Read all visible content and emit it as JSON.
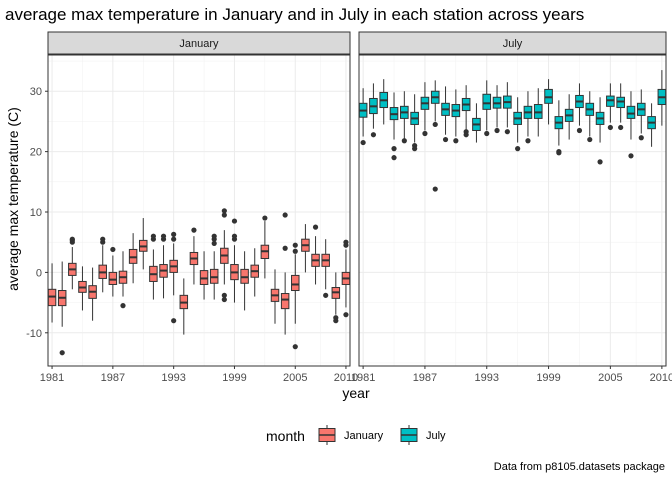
{
  "chart_data": {
    "type": "boxplot",
    "title": "average max temperature in January and in July in each station across years",
    "xlabel": "year",
    "ylabel": "average max temperature (C)",
    "caption": "Data from p8105.datasets package",
    "legend": {
      "title": "month",
      "position": "bottom",
      "entries": [
        "January",
        "July"
      ]
    },
    "colors": {
      "January": "#F8766D",
      "July": "#00BFC4"
    },
    "xlim": [
      1980.6,
      2010.4
    ],
    "ylim": [
      -15.5,
      36
    ],
    "x_ticks": [
      1981,
      1987,
      1993,
      1999,
      2005,
      2010
    ],
    "y_ticks": [
      -10,
      0,
      10,
      20,
      30
    ],
    "grid": true,
    "facets": [
      {
        "label": "January",
        "series": "January",
        "boxes": [
          {
            "year": 1981,
            "q1": -5.5,
            "median": -4.0,
            "q3": -2.8,
            "whisker_low": -8.3,
            "whisker_high": 1.5,
            "outliers": []
          },
          {
            "year": 1982,
            "q1": -5.5,
            "median": -4.2,
            "q3": -3.0,
            "whisker_low": -9.0,
            "whisker_high": 1.8,
            "outliers": [
              -13.3
            ]
          },
          {
            "year": 1983,
            "q1": -0.5,
            "median": 0.5,
            "q3": 1.5,
            "whisker_low": -2.8,
            "whisker_high": 4.2,
            "outliers": [
              5.0,
              5.3,
              5.5
            ]
          },
          {
            "year": 1984,
            "q1": -3.3,
            "median": -2.5,
            "q3": -1.5,
            "whisker_low": -6.3,
            "whisker_high": 1.0,
            "outliers": []
          },
          {
            "year": 1985,
            "q1": -4.3,
            "median": -3.2,
            "q3": -2.2,
            "whisker_low": -8.0,
            "whisker_high": 0.8,
            "outliers": []
          },
          {
            "year": 1986,
            "q1": -1.0,
            "median": 0.0,
            "q3": 1.2,
            "whisker_low": -3.3,
            "whisker_high": 4.5,
            "outliers": [
              5.0,
              5.5
            ]
          },
          {
            "year": 1987,
            "q1": -2.0,
            "median": -1.2,
            "q3": 0.0,
            "whisker_low": -4.0,
            "whisker_high": 2.8,
            "outliers": [
              3.8
            ]
          },
          {
            "year": 1988,
            "q1": -1.8,
            "median": -0.8,
            "q3": 0.2,
            "whisker_low": -4.0,
            "whisker_high": 3.5,
            "outliers": [
              -5.5
            ]
          },
          {
            "year": 1989,
            "q1": 1.5,
            "median": 2.5,
            "q3": 3.8,
            "whisker_low": -1.8,
            "whisker_high": 6.5,
            "outliers": []
          },
          {
            "year": 1990,
            "q1": 3.5,
            "median": 4.3,
            "q3": 5.3,
            "whisker_low": 0.5,
            "whisker_high": 9.0,
            "outliers": []
          },
          {
            "year": 1991,
            "q1": -1.5,
            "median": -0.3,
            "q3": 1.0,
            "whisker_low": -4.5,
            "whisker_high": 3.8,
            "outliers": [
              5.5,
              6.0
            ]
          },
          {
            "year": 1992,
            "q1": -0.8,
            "median": 0.3,
            "q3": 1.3,
            "whisker_low": -4.3,
            "whisker_high": 4.5,
            "outliers": [
              5.5,
              6.0
            ]
          },
          {
            "year": 1993,
            "q1": 0.0,
            "median": 1.0,
            "q3": 2.0,
            "whisker_low": -3.8,
            "whisker_high": 4.8,
            "outliers": [
              5.5,
              6.3,
              -8.0
            ]
          },
          {
            "year": 1994,
            "q1": -6.0,
            "median": -5.0,
            "q3": -3.8,
            "whisker_low": -10.3,
            "whisker_high": -1.0,
            "outliers": []
          },
          {
            "year": 1995,
            "q1": 1.3,
            "median": 2.3,
            "q3": 3.3,
            "whisker_low": -2.0,
            "whisker_high": 6.0,
            "outliers": [
              7.0
            ]
          },
          {
            "year": 1996,
            "q1": -2.0,
            "median": -1.0,
            "q3": 0.3,
            "whisker_low": -4.5,
            "whisker_high": 3.5,
            "outliers": []
          },
          {
            "year": 1997,
            "q1": -1.8,
            "median": -0.8,
            "q3": 0.5,
            "whisker_low": -4.5,
            "whisker_high": 3.5,
            "outliers": [
              4.8,
              5.5,
              6.0
            ]
          },
          {
            "year": 1998,
            "q1": 1.5,
            "median": 2.8,
            "q3": 4.0,
            "whisker_low": -2.0,
            "whisker_high": 7.0,
            "outliers": [
              10.2,
              9.5,
              -3.8,
              -4.5
            ]
          },
          {
            "year": 1999,
            "q1": -1.2,
            "median": 0.0,
            "q3": 1.3,
            "whisker_low": -5.0,
            "whisker_high": 4.5,
            "outliers": [
              5.5,
              6.0,
              8.5
            ]
          },
          {
            "year": 2000,
            "q1": -1.8,
            "median": -0.8,
            "q3": 0.5,
            "whisker_low": -6.3,
            "whisker_high": 3.5,
            "outliers": []
          },
          {
            "year": 2001,
            "q1": -0.8,
            "median": 0.2,
            "q3": 1.2,
            "whisker_low": -4.0,
            "whisker_high": 4.0,
            "outliers": []
          },
          {
            "year": 2002,
            "q1": 2.3,
            "median": 3.5,
            "q3": 4.5,
            "whisker_low": -1.0,
            "whisker_high": 8.5,
            "outliers": [
              9.0
            ]
          },
          {
            "year": 2003,
            "q1": -4.8,
            "median": -3.8,
            "q3": -2.8,
            "whisker_low": -8.5,
            "whisker_high": 0.5,
            "outliers": []
          },
          {
            "year": 2004,
            "q1": -6.0,
            "median": -4.5,
            "q3": -3.5,
            "whisker_low": -10.3,
            "whisker_high": 0.0,
            "outliers": [
              9.5,
              4.0
            ]
          },
          {
            "year": 2005,
            "q1": -3.0,
            "median": -2.0,
            "q3": -0.5,
            "whisker_low": -8.5,
            "whisker_high": 3.0,
            "outliers": [
              -12.3,
              3.5,
              4.5
            ]
          },
          {
            "year": 2006,
            "q1": 3.5,
            "median": 4.5,
            "q3": 5.5,
            "whisker_low": 0.0,
            "whisker_high": 8.0,
            "outliers": []
          },
          {
            "year": 2007,
            "q1": 1.0,
            "median": 2.0,
            "q3": 3.0,
            "whisker_low": -2.0,
            "whisker_high": 6.0,
            "outliers": [
              7.5
            ]
          },
          {
            "year": 2008,
            "q1": 1.0,
            "median": 2.0,
            "q3": 3.0,
            "whisker_low": -2.8,
            "whisker_high": 5.5,
            "outliers": [
              -3.8
            ]
          },
          {
            "year": 2009,
            "q1": -4.3,
            "median": -3.3,
            "q3": -2.5,
            "whisker_low": -7.0,
            "whisker_high": 0.0,
            "outliers": [
              -7.5,
              -8.0
            ]
          },
          {
            "year": 2010,
            "q1": -2.0,
            "median": -1.0,
            "q3": 0.0,
            "whisker_low": -5.8,
            "whisker_high": 3.8,
            "outliers": [
              4.5,
              5.0,
              -7.0
            ]
          }
        ]
      },
      {
        "label": "July",
        "series": "July",
        "boxes": [
          {
            "year": 1981,
            "q1": 25.7,
            "median": 26.8,
            "q3": 28.0,
            "whisker_low": 22.5,
            "whisker_high": 30.5,
            "outliers": [
              21.5
            ]
          },
          {
            "year": 1982,
            "q1": 26.3,
            "median": 27.5,
            "q3": 28.8,
            "whisker_low": 23.8,
            "whisker_high": 31.3,
            "outliers": [
              22.8
            ]
          },
          {
            "year": 1983,
            "q1": 27.3,
            "median": 28.5,
            "q3": 29.8,
            "whisker_low": 24.5,
            "whisker_high": 32.0,
            "outliers": []
          },
          {
            "year": 1984,
            "q1": 25.3,
            "median": 26.2,
            "q3": 27.3,
            "whisker_low": 22.0,
            "whisker_high": 29.8,
            "outliers": [
              20.5,
              19.0
            ]
          },
          {
            "year": 1985,
            "q1": 25.5,
            "median": 26.5,
            "q3": 27.5,
            "whisker_low": 22.0,
            "whisker_high": 30.0,
            "outliers": [
              21.8
            ]
          },
          {
            "year": 1986,
            "q1": 24.5,
            "median": 25.5,
            "q3": 26.5,
            "whisker_low": 21.5,
            "whisker_high": 29.5,
            "outliers": [
              21.0,
              20.5
            ]
          },
          {
            "year": 1987,
            "q1": 27.0,
            "median": 28.0,
            "q3": 29.0,
            "whisker_low": 23.5,
            "whisker_high": 31.5,
            "outliers": [
              23.0
            ]
          },
          {
            "year": 1988,
            "q1": 28.0,
            "median": 29.0,
            "q3": 30.0,
            "whisker_low": 25.0,
            "whisker_high": 31.8,
            "outliers": [
              13.8,
              24.5
            ]
          },
          {
            "year": 1989,
            "q1": 26.0,
            "median": 27.0,
            "q3": 28.0,
            "whisker_low": 22.8,
            "whisker_high": 30.8,
            "outliers": [
              22.0
            ]
          },
          {
            "year": 1990,
            "q1": 25.8,
            "median": 26.8,
            "q3": 27.8,
            "whisker_low": 22.5,
            "whisker_high": 30.3,
            "outliers": [
              21.8
            ]
          },
          {
            "year": 1991,
            "q1": 26.8,
            "median": 27.8,
            "q3": 28.8,
            "whisker_low": 23.5,
            "whisker_high": 31.0,
            "outliers": [
              22.8,
              23.3
            ]
          },
          {
            "year": 1992,
            "q1": 23.5,
            "median": 24.5,
            "q3": 25.5,
            "whisker_low": 21.5,
            "whisker_high": 28.0,
            "outliers": []
          },
          {
            "year": 1993,
            "q1": 27.0,
            "median": 28.0,
            "q3": 29.5,
            "whisker_low": 23.5,
            "whisker_high": 31.8,
            "outliers": [
              23.0
            ]
          },
          {
            "year": 1994,
            "q1": 27.2,
            "median": 28.0,
            "q3": 29.0,
            "whisker_low": 24.0,
            "whisker_high": 31.0,
            "outliers": [
              23.5
            ]
          },
          {
            "year": 1995,
            "q1": 27.2,
            "median": 28.2,
            "q3": 29.2,
            "whisker_low": 24.0,
            "whisker_high": 31.5,
            "outliers": [
              23.3
            ]
          },
          {
            "year": 1996,
            "q1": 24.5,
            "median": 25.5,
            "q3": 26.5,
            "whisker_low": 21.5,
            "whisker_high": 29.0,
            "outliers": [
              20.5
            ]
          },
          {
            "year": 1997,
            "q1": 25.5,
            "median": 26.5,
            "q3": 27.5,
            "whisker_low": 22.5,
            "whisker_high": 30.0,
            "outliers": [
              21.8
            ]
          },
          {
            "year": 1998,
            "q1": 25.5,
            "median": 26.5,
            "q3": 27.8,
            "whisker_low": 22.5,
            "whisker_high": 30.5,
            "outliers": []
          },
          {
            "year": 1999,
            "q1": 28.0,
            "median": 29.0,
            "q3": 30.3,
            "whisker_low": 24.5,
            "whisker_high": 32.0,
            "outliers": []
          },
          {
            "year": 2000,
            "q1": 23.8,
            "median": 24.8,
            "q3": 25.8,
            "whisker_low": 21.0,
            "whisker_high": 28.5,
            "outliers": [
              20.0,
              19.8
            ]
          },
          {
            "year": 2001,
            "q1": 25.0,
            "median": 26.0,
            "q3": 27.0,
            "whisker_low": 22.0,
            "whisker_high": 29.5,
            "outliers": []
          },
          {
            "year": 2002,
            "q1": 27.3,
            "median": 28.3,
            "q3": 29.3,
            "whisker_low": 24.3,
            "whisker_high": 31.3,
            "outliers": [
              23.5
            ]
          },
          {
            "year": 2003,
            "q1": 26.0,
            "median": 27.0,
            "q3": 28.0,
            "whisker_low": 22.5,
            "whisker_high": 30.0,
            "outliers": [
              22.0
            ]
          },
          {
            "year": 2004,
            "q1": 24.5,
            "median": 25.5,
            "q3": 26.5,
            "whisker_low": 21.5,
            "whisker_high": 29.0,
            "outliers": [
              18.3
            ]
          },
          {
            "year": 2005,
            "q1": 27.5,
            "median": 28.5,
            "q3": 29.2,
            "whisker_low": 24.8,
            "whisker_high": 31.3,
            "outliers": [
              24.0
            ]
          },
          {
            "year": 2006,
            "q1": 27.3,
            "median": 28.3,
            "q3": 29.0,
            "whisker_low": 24.8,
            "whisker_high": 31.3,
            "outliers": [
              24.0
            ]
          },
          {
            "year": 2007,
            "q1": 25.5,
            "median": 26.3,
            "q3": 27.5,
            "whisker_low": 22.0,
            "whisker_high": 30.0,
            "outliers": [
              19.3
            ]
          },
          {
            "year": 2008,
            "q1": 26.0,
            "median": 27.0,
            "q3": 28.0,
            "whisker_low": 23.0,
            "whisker_high": 30.3,
            "outliers": [
              22.3
            ]
          },
          {
            "year": 2009,
            "q1": 23.8,
            "median": 24.8,
            "q3": 25.8,
            "whisker_low": 20.8,
            "whisker_high": 28.0,
            "outliers": []
          },
          {
            "year": 2010,
            "q1": 27.8,
            "median": 29.0,
            "q3": 30.3,
            "whisker_low": 24.3,
            "whisker_high": 33.5,
            "outliers": []
          }
        ]
      }
    ]
  }
}
